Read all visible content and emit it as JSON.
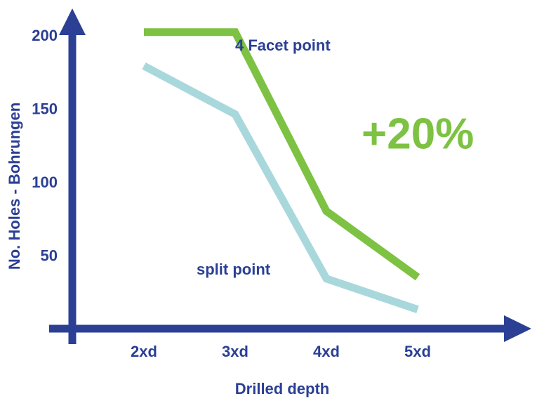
{
  "chart_data": {
    "type": "line",
    "x_label": "Drilled depth",
    "y_label": "No. Holes - Bohrungen",
    "categories": [
      "2xd",
      "3xd",
      "4xd",
      "5xd"
    ],
    "series": [
      {
        "name": "4 Facet point",
        "color": "#7dc242",
        "values": [
          203,
          203,
          81,
          36
        ]
      },
      {
        "name": "split point",
        "color": "#a8d8dc",
        "values": [
          180,
          147,
          35,
          14
        ]
      }
    ],
    "annotation": "+20%",
    "annotation_color": "#7dc242",
    "axis_color": "#2b3f94",
    "ylim": [
      0,
      200
    ],
    "yticks": [
      50,
      100,
      150,
      200
    ],
    "grid": false
  }
}
